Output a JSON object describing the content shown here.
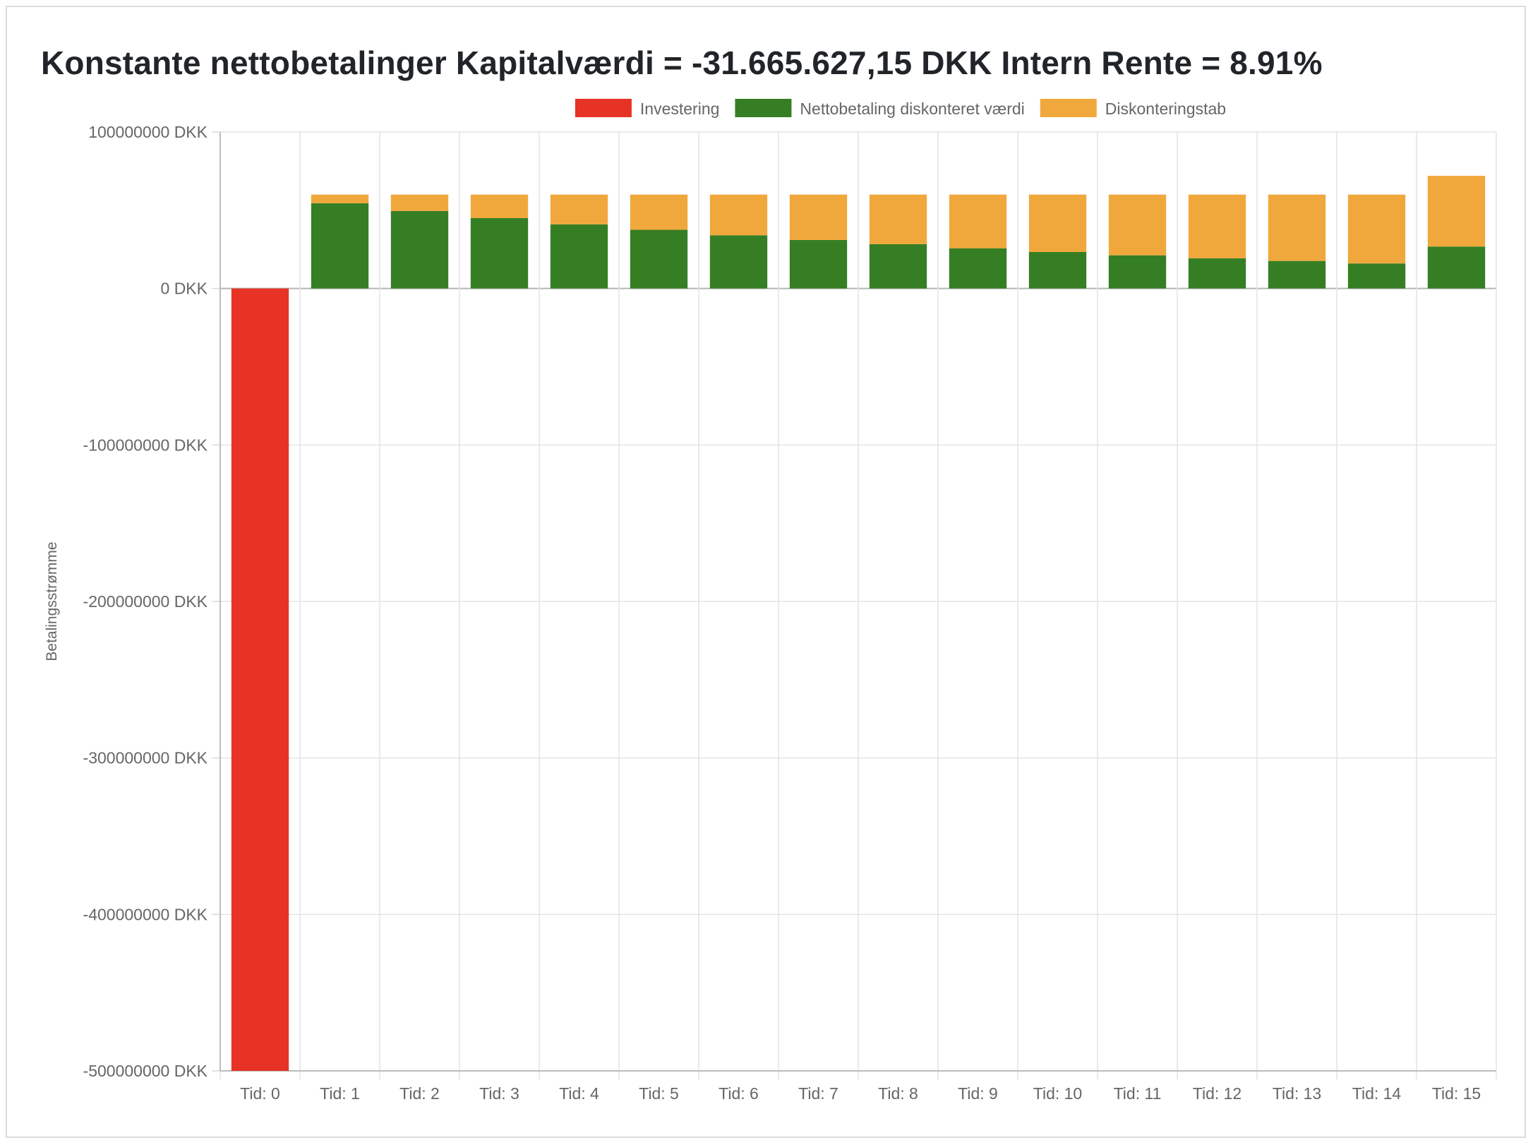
{
  "title": "Konstante nettobetalinger Kapitalværdi = -31.665.627,15 DKK Intern Rente = 8.91%",
  "chart_data": {
    "type": "bar",
    "stacked": true,
    "title": "Konstante nettobetalinger Kapitalværdi = -31.665.627,15 DKK Intern Rente = 8.91%",
    "categories": [
      "Tid: 0",
      "Tid: 1",
      "Tid: 2",
      "Tid: 3",
      "Tid: 4",
      "Tid: 5",
      "Tid: 6",
      "Tid: 7",
      "Tid: 8",
      "Tid: 9",
      "Tid: 10",
      "Tid: 11",
      "Tid: 12",
      "Tid: 13",
      "Tid: 14",
      "Tid: 15"
    ],
    "series": [
      {
        "name": "Investering",
        "color": "#e63325",
        "values": [
          -500000000,
          0,
          0,
          0,
          0,
          0,
          0,
          0,
          0,
          0,
          0,
          0,
          0,
          0,
          0,
          0
        ]
      },
      {
        "name": "Nettobetaling diskonteret værdi",
        "color": "#367e24",
        "values": [
          0,
          54500000,
          49500000,
          45000000,
          41000000,
          37500000,
          34000000,
          31000000,
          28300000,
          25700000,
          23300000,
          21200000,
          19300000,
          17600000,
          16000000,
          26800000
        ]
      },
      {
        "name": "Diskonteringstab",
        "color": "#f0a83c",
        "values": [
          0,
          5500000,
          10500000,
          15000000,
          19000000,
          22500000,
          26000000,
          29000000,
          31700000,
          34300000,
          36700000,
          38800000,
          40700000,
          42400000,
          44000000,
          45200000
        ]
      }
    ],
    "ylabel": "Betalingsstrømme",
    "xlabel": "",
    "ylim": [
      -500000000,
      100000000
    ],
    "yticks": [
      100000000,
      0,
      -100000000,
      -200000000,
      -300000000,
      -400000000,
      -500000000
    ],
    "ytick_labels": [
      "100000000 DKK",
      "0 DKK",
      "-100000000 DKK",
      "-200000000 DKK",
      "-300000000 DKK",
      "-400000000 DKK",
      "-500000000 DKK"
    ],
    "grid": true,
    "legend_position": "top"
  }
}
